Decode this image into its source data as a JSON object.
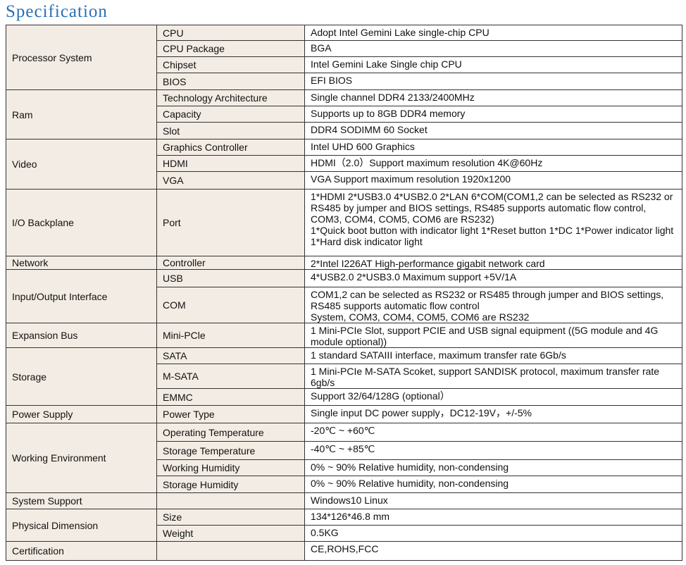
{
  "title": "Specification",
  "groups": [
    {
      "name": "Processor System",
      "rows": [
        {
          "item": "CPU",
          "value": "Adopt Intel Gemini Lake single-chip CPU"
        },
        {
          "item": "CPU Package",
          "value": "BGA"
        },
        {
          "item": "Chipset",
          "value": "Intel Gemini Lake Single chip CPU"
        },
        {
          "item": "BIOS",
          "value": "EFI BIOS"
        }
      ]
    },
    {
      "name": "Ram",
      "rows": [
        {
          "item": "Technology Architecture",
          "value": "Single channel DDR4 2133/2400MHz"
        },
        {
          "item": "Capacity",
          "value": "Supports up to 8GB DDR4 memory"
        },
        {
          "item": "Slot",
          "value": "DDR4 SODIMM 60 Socket"
        }
      ]
    },
    {
      "name": "Video",
      "rows": [
        {
          "item": "Graphics Controller",
          "value": "Intel UHD 600 Graphics"
        },
        {
          "item": "HDMI",
          "value": "HDMI（2.0）Support maximum resolution 4K@60Hz"
        },
        {
          "item": "VGA",
          "value": "VGA Support maximum resolution 1920x1200"
        }
      ]
    },
    {
      "name": "I/O Backplane",
      "rows": [
        {
          "item": "Port",
          "value": "1*HDMI 2*USB3.0 4*USB2.0 2*LAN 6*COM(COM1,2 can be selected as RS232 or RS485 by jumper and BIOS settings, RS485 supports automatic flow control, COM3, COM4, COM5, COM6 are RS232)\n1*Quick boot button with indicator light 1*Reset button 1*DC 1*Power indicator light 1*Hard disk indicator light"
        }
      ]
    },
    {
      "name": "Network",
      "rows": [
        {
          "item": "Controller",
          "value": "2*Intel I226AT High-performance gigabit network card"
        }
      ]
    },
    {
      "name": "Input/Output Interface",
      "rows": [
        {
          "item": "USB",
          "value": "4*USB2.0 2*USB3.0 Maximum support +5V/1A"
        },
        {
          "item": "COM",
          "value": "COM1,2 can be selected as RS232 or RS485 through jumper and BIOS settings, RS485 supports automatic flow control\nSystem, COM3, COM4, COM5, COM6 are RS232"
        }
      ]
    },
    {
      "name": "Expansion Bus",
      "rows": [
        {
          "item": "Mini-PCle",
          "value": "1  Mini-PCIe Slot, support PCIE and USB signal equipment ((5G module and 4G module optional))"
        }
      ]
    },
    {
      "name": "Storage",
      "rows": [
        {
          "item": "SATA",
          "value": "1 standard SATAIII interface, maximum transfer rate 6Gb/s"
        },
        {
          "item": "M-SATA",
          "value": "1 Mini-PCIe M-SATA Scoket, support SANDISK protocol, maximum transfer rate 6gb/s"
        },
        {
          "item": "EMMC",
          "value": "Support 32/64/128G (optional）"
        }
      ]
    },
    {
      "name": "Power Supply",
      "rows": [
        {
          "item": "Power Type",
          "value": "Single input DC power supply，DC12-19V，+/-5%"
        }
      ]
    },
    {
      "name": "Working Environment",
      "rows": [
        {
          "item": "Operating Temperature",
          "value": "-20℃ ~ +60℃"
        },
        {
          "item": "Storage Temperature",
          "value": "-40℃ ~ +85℃"
        },
        {
          "item": "Working Humidity",
          "value": "0% ~ 90% Relative humidity, non-condensing"
        },
        {
          "item": "Storage Humidity",
          "value": "0% ~ 90% Relative humidity, non-condensing"
        }
      ]
    },
    {
      "name": "System Support",
      "rows": [
        {
          "value": "Windows10 Linux"
        }
      ]
    },
    {
      "name": "Physical Dimension",
      "rows": [
        {
          "item": "Size",
          "value": "134*126*46.8 mm"
        },
        {
          "item": "Weight",
          "value": "0.5KG"
        }
      ]
    },
    {
      "name": "Certification",
      "rows": [
        {
          "value": "CE,ROHS,FCC"
        }
      ]
    }
  ]
}
